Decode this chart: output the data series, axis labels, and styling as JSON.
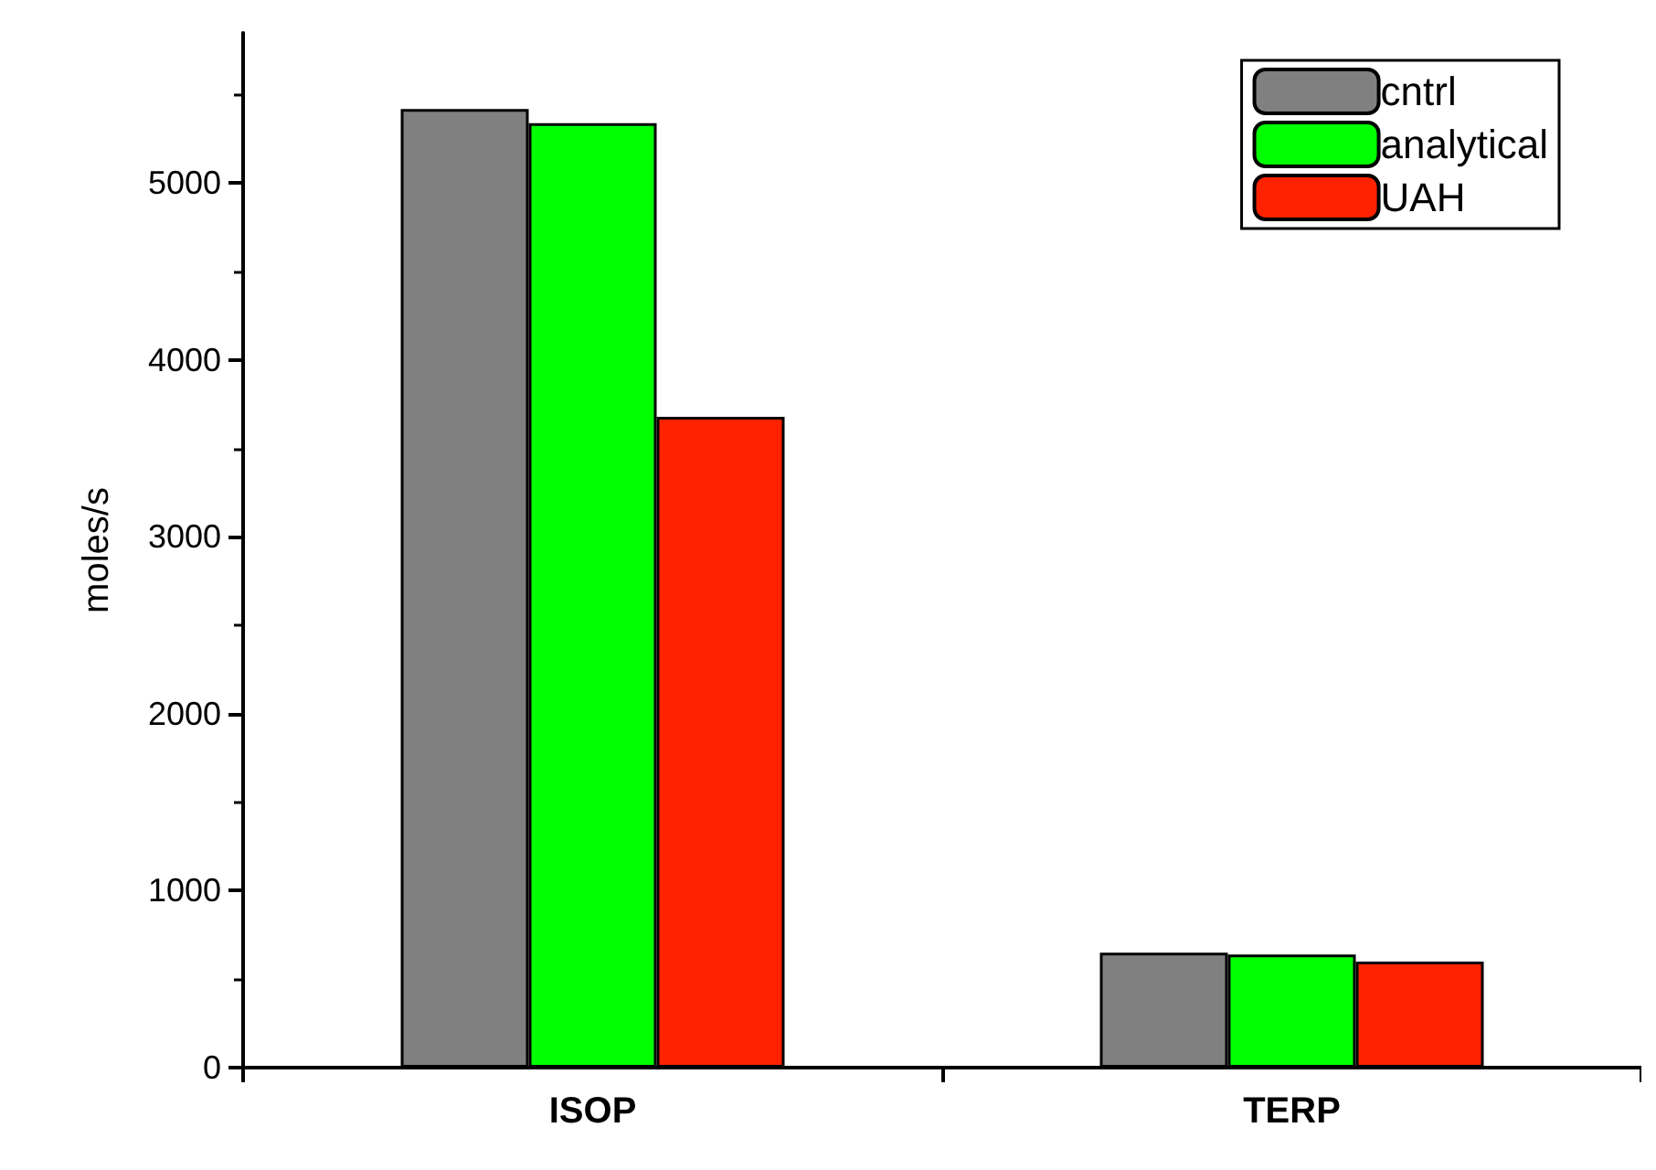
{
  "chart_data": {
    "type": "bar",
    "ylabel": "moles/s",
    "categories": [
      "ISOP",
      "TERP"
    ],
    "series": [
      {
        "name": "cntrl",
        "color": "#808080",
        "values": [
          5420,
          650
        ]
      },
      {
        "name": "analytical",
        "color": "#00ff00",
        "values": [
          5340,
          640
        ]
      },
      {
        "name": "UAH",
        "color": "#ff2200",
        "values": [
          3680,
          600
        ]
      }
    ],
    "ylim": [
      0,
      5850
    ],
    "yticks": [
      0,
      1000,
      2000,
      3000,
      4000,
      5000
    ],
    "grid": false,
    "legend": "top right"
  }
}
